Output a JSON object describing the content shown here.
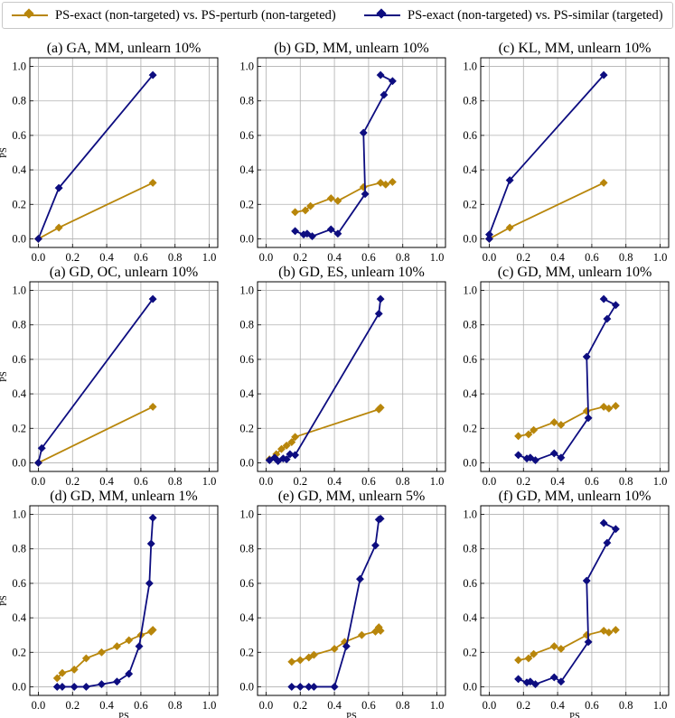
{
  "legend": {
    "series1": "PS-exact (non-targeted) vs. PS-perturb (non-targeted)",
    "series2": "PS-exact (non-targeted) vs. PS-similar (targeted)"
  },
  "colors": {
    "series1": "#b8860b",
    "series2": "#0d0d80"
  },
  "chart_data": [
    {
      "type": "line",
      "title": "(a) GA, MM, unlearn 10%",
      "xlabel": "",
      "ylabel": "PS",
      "xlim": [
        -0.05,
        1.05
      ],
      "ylim": [
        -0.05,
        1.05
      ],
      "xticks": [
        "0.0",
        "0.2",
        "0.4",
        "0.6",
        "0.8",
        "1.0"
      ],
      "yticks": [
        "0.0",
        "0.2",
        "0.4",
        "0.6",
        "0.8",
        "1.0"
      ],
      "series": [
        {
          "name": "PS-exact (non-targeted) vs. PS-perturb (non-targeted)",
          "x": [
            0.0,
            0.12,
            0.67
          ],
          "y": [
            0.0,
            0.065,
            0.325
          ]
        },
        {
          "name": "PS-exact (non-targeted) vs. PS-similar (targeted)",
          "x": [
            0.0,
            0.12,
            0.67
          ],
          "y": [
            0.0,
            0.295,
            0.95
          ]
        }
      ]
    },
    {
      "type": "line",
      "title": "(b) GD, MM, unlearn 10%",
      "xlabel": "",
      "ylabel": "",
      "xlim": [
        -0.05,
        1.05
      ],
      "ylim": [
        -0.05,
        1.05
      ],
      "xticks": [
        "0.0",
        "0.2",
        "0.4",
        "0.6",
        "0.8",
        "1.0"
      ],
      "yticks": [
        "0.0",
        "0.2",
        "0.4",
        "0.6",
        "0.8",
        "1.0"
      ],
      "series": [
        {
          "name": "PS-exact (non-targeted) vs. PS-perturb (non-targeted)",
          "x": [
            0.17,
            0.23,
            0.26,
            0.38,
            0.42,
            0.57,
            0.67,
            0.7,
            0.74
          ],
          "y": [
            0.155,
            0.165,
            0.19,
            0.235,
            0.22,
            0.3,
            0.325,
            0.315,
            0.33
          ]
        },
        {
          "name": "PS-exact (non-targeted) vs. PS-similar (targeted)",
          "x": [
            0.17,
            0.22,
            0.24,
            0.27,
            0.38,
            0.42,
            0.58,
            0.57,
            0.69,
            0.74,
            0.67
          ],
          "y": [
            0.045,
            0.025,
            0.03,
            0.015,
            0.055,
            0.03,
            0.26,
            0.615,
            0.835,
            0.915,
            0.95
          ]
        }
      ]
    },
    {
      "type": "line",
      "title": "(c) KL, MM, unlearn 10%",
      "xlabel": "",
      "ylabel": "",
      "xlim": [
        -0.05,
        1.05
      ],
      "ylim": [
        -0.05,
        1.05
      ],
      "xticks": [
        "0.0",
        "0.2",
        "0.4",
        "0.6",
        "0.8",
        "1.0"
      ],
      "yticks": [
        "0.0",
        "0.2",
        "0.4",
        "0.6",
        "0.8",
        "1.0"
      ],
      "series": [
        {
          "name": "PS-exact (non-targeted) vs. PS-perturb (non-targeted)",
          "x": [
            0.0,
            0.12,
            0.67
          ],
          "y": [
            0.0,
            0.065,
            0.325
          ]
        },
        {
          "name": "PS-exact (non-targeted) vs. PS-similar (targeted)",
          "x": [
            0.0,
            0.0,
            0.12,
            0.67
          ],
          "y": [
            0.0,
            0.025,
            0.34,
            0.95
          ]
        }
      ]
    },
    {
      "type": "line",
      "title": "(a) GD, OC, unlearn 10%",
      "xlabel": "",
      "ylabel": "PS",
      "xlim": [
        -0.05,
        1.05
      ],
      "ylim": [
        -0.05,
        1.05
      ],
      "xticks": [
        "0.0",
        "0.2",
        "0.4",
        "0.6",
        "0.8",
        "1.0"
      ],
      "yticks": [
        "0.0",
        "0.2",
        "0.4",
        "0.6",
        "0.8",
        "1.0"
      ],
      "series": [
        {
          "name": "PS-exact (non-targeted) vs. PS-perturb (non-targeted)",
          "x": [
            0.0,
            0.67
          ],
          "y": [
            0.0,
            0.325
          ]
        },
        {
          "name": "PS-exact (non-targeted) vs. PS-similar (targeted)",
          "x": [
            0.0,
            0.02,
            0.67
          ],
          "y": [
            0.0,
            0.085,
            0.95
          ]
        }
      ]
    },
    {
      "type": "line",
      "title": "(b) GD, ES, unlearn 10%",
      "xlabel": "",
      "ylabel": "",
      "xlim": [
        -0.05,
        1.05
      ],
      "ylim": [
        -0.05,
        1.05
      ],
      "xticks": [
        "0.0",
        "0.2",
        "0.4",
        "0.6",
        "0.8",
        "1.0"
      ],
      "yticks": [
        "0.0",
        "0.2",
        "0.4",
        "0.6",
        "0.8",
        "1.0"
      ],
      "series": [
        {
          "name": "PS-exact (non-targeted) vs. PS-perturb (non-targeted)",
          "x": [
            0.02,
            0.06,
            0.09,
            0.12,
            0.15,
            0.17,
            0.66,
            0.67
          ],
          "y": [
            0.02,
            0.05,
            0.08,
            0.1,
            0.12,
            0.15,
            0.31,
            0.32
          ]
        },
        {
          "name": "PS-exact (non-targeted) vs. PS-similar (targeted)",
          "x": [
            0.02,
            0.05,
            0.07,
            0.1,
            0.12,
            0.14,
            0.17,
            0.66,
            0.67
          ],
          "y": [
            0.015,
            0.03,
            0.01,
            0.025,
            0.02,
            0.05,
            0.045,
            0.865,
            0.95
          ]
        }
      ]
    },
    {
      "type": "line",
      "title": "(c) GD, MM, unlearn 10%",
      "xlabel": "",
      "ylabel": "",
      "xlim": [
        -0.05,
        1.05
      ],
      "ylim": [
        -0.05,
        1.05
      ],
      "xticks": [
        "0.0",
        "0.2",
        "0.4",
        "0.6",
        "0.8",
        "1.0"
      ],
      "yticks": [
        "0.0",
        "0.2",
        "0.4",
        "0.6",
        "0.8",
        "1.0"
      ],
      "series": [
        {
          "name": "PS-exact (non-targeted) vs. PS-perturb (non-targeted)",
          "x": [
            0.17,
            0.23,
            0.26,
            0.38,
            0.42,
            0.57,
            0.67,
            0.7,
            0.74
          ],
          "y": [
            0.155,
            0.165,
            0.19,
            0.235,
            0.22,
            0.3,
            0.325,
            0.315,
            0.33
          ]
        },
        {
          "name": "PS-exact (non-targeted) vs. PS-similar (targeted)",
          "x": [
            0.17,
            0.22,
            0.24,
            0.27,
            0.38,
            0.42,
            0.58,
            0.57,
            0.69,
            0.74,
            0.67
          ],
          "y": [
            0.045,
            0.025,
            0.03,
            0.015,
            0.055,
            0.03,
            0.26,
            0.615,
            0.835,
            0.915,
            0.95
          ]
        }
      ]
    },
    {
      "type": "line",
      "title": "(d) GD, MM, unlearn 1%",
      "xlabel": "PS",
      "ylabel": "PS",
      "xlim": [
        -0.05,
        1.05
      ],
      "ylim": [
        -0.05,
        1.05
      ],
      "xticks": [
        "0.0",
        "0.2",
        "0.4",
        "0.6",
        "0.8",
        "1.0"
      ],
      "yticks": [
        "0.0",
        "0.2",
        "0.4",
        "0.6",
        "0.8",
        "1.0"
      ],
      "series": [
        {
          "name": "PS-exact (non-targeted) vs. PS-perturb (non-targeted)",
          "x": [
            0.11,
            0.14,
            0.21,
            0.28,
            0.37,
            0.46,
            0.53,
            0.6,
            0.66,
            0.67
          ],
          "y": [
            0.05,
            0.08,
            0.1,
            0.165,
            0.2,
            0.235,
            0.27,
            0.3,
            0.32,
            0.33
          ]
        },
        {
          "name": "PS-exact (non-targeted) vs. PS-similar (targeted)",
          "x": [
            0.11,
            0.14,
            0.21,
            0.28,
            0.37,
            0.46,
            0.53,
            0.59,
            0.65,
            0.66,
            0.67
          ],
          "y": [
            0.0,
            0.0,
            0.0,
            0.0,
            0.015,
            0.03,
            0.075,
            0.235,
            0.6,
            0.83,
            0.98
          ]
        }
      ]
    },
    {
      "type": "line",
      "title": "(e) GD, MM, unlearn 5%",
      "xlabel": "PS",
      "ylabel": "",
      "xlim": [
        -0.05,
        1.05
      ],
      "ylim": [
        -0.05,
        1.05
      ],
      "xticks": [
        "0.0",
        "0.2",
        "0.4",
        "0.6",
        "0.8",
        "1.0"
      ],
      "yticks": [
        "0.0",
        "0.2",
        "0.4",
        "0.6",
        "0.8",
        "1.0"
      ],
      "series": [
        {
          "name": "PS-exact (non-targeted) vs. PS-perturb (non-targeted)",
          "x": [
            0.15,
            0.2,
            0.25,
            0.28,
            0.4,
            0.46,
            0.56,
            0.64,
            0.66,
            0.67
          ],
          "y": [
            0.145,
            0.155,
            0.17,
            0.185,
            0.22,
            0.26,
            0.3,
            0.32,
            0.345,
            0.325
          ]
        },
        {
          "name": "PS-exact (non-targeted) vs. PS-similar (targeted)",
          "x": [
            0.15,
            0.2,
            0.25,
            0.28,
            0.4,
            0.47,
            0.55,
            0.64,
            0.66,
            0.67
          ],
          "y": [
            0.0,
            0.0,
            0.0,
            0.0,
            0.0,
            0.235,
            0.625,
            0.82,
            0.97,
            0.975
          ]
        }
      ]
    },
    {
      "type": "line",
      "title": "(f) GD, MM, unlearn 10%",
      "xlabel": "PS",
      "ylabel": "",
      "xlim": [
        -0.05,
        1.05
      ],
      "ylim": [
        -0.05,
        1.05
      ],
      "xticks": [
        "0.0",
        "0.2",
        "0.4",
        "0.6",
        "0.8",
        "1.0"
      ],
      "yticks": [
        "0.0",
        "0.2",
        "0.4",
        "0.6",
        "0.8",
        "1.0"
      ],
      "series": [
        {
          "name": "PS-exact (non-targeted) vs. PS-perturb (non-targeted)",
          "x": [
            0.17,
            0.23,
            0.26,
            0.38,
            0.42,
            0.57,
            0.67,
            0.7,
            0.74
          ],
          "y": [
            0.155,
            0.165,
            0.19,
            0.235,
            0.22,
            0.3,
            0.325,
            0.315,
            0.33
          ]
        },
        {
          "name": "PS-exact (non-targeted) vs. PS-similar (targeted)",
          "x": [
            0.17,
            0.22,
            0.24,
            0.27,
            0.38,
            0.42,
            0.58,
            0.57,
            0.69,
            0.74,
            0.67
          ],
          "y": [
            0.045,
            0.025,
            0.03,
            0.015,
            0.055,
            0.03,
            0.26,
            0.615,
            0.835,
            0.915,
            0.95
          ]
        }
      ]
    }
  ]
}
